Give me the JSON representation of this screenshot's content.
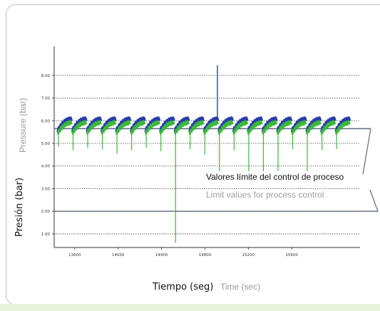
{
  "chart_data": {
    "type": "line",
    "ylabel_es": "Presión (bar)",
    "ylabel_en": "Pressure (bar)",
    "xlabel_es": "Tiempo (seg)",
    "xlabel_en": "Time (sec)",
    "ylim": [
      0.4,
      9.6
    ],
    "xlim": [
      13410,
      16230
    ],
    "y_ticks": [
      1.0,
      2.0,
      3.0,
      4.0,
      5.0,
      6.0,
      7.0,
      8.0
    ],
    "y_tick_labels": [
      "1.00",
      "2.00",
      "3.00",
      "4.00",
      "5.00",
      "6.00",
      "7.00",
      "8.00"
    ],
    "x_ticks": [
      13600,
      14000,
      14400,
      14800,
      15200,
      15600
    ],
    "x_tick_labels": [
      "13600",
      "14000",
      "14400",
      "14800",
      "15200",
      "15600"
    ],
    "grid": true,
    "limit_upper": 5.65,
    "limit_lower": 2.0,
    "limit_label_es": "Valores límite del control de proceso",
    "limit_label_en": "Limit values for process control",
    "cycle_start_x": [
      13445,
      13580,
      13715,
      13850,
      13985,
      14120,
      14255,
      14390,
      14525,
      14660,
      14795,
      14930,
      15065,
      15200,
      15335,
      15470,
      15605,
      15740,
      15875,
      16010
    ],
    "cycle_dip_y": [
      4.85,
      4.7,
      4.8,
      4.75,
      4.55,
      4.7,
      4.8,
      4.65,
      0.6,
      4.75,
      4.5,
      3.75,
      4.7,
      3.65,
      3.65,
      3.6,
      4.75,
      3.65,
      4.7,
      4.75
    ],
    "series": [
      {
        "name": "",
        "color": "#2a3da8",
        "peak": 6.05,
        "trough": 5.55,
        "spike_x": 14915,
        "spike_y": 8.45
      },
      {
        "name": "",
        "color": "#3cb83c",
        "peak": 5.9,
        "trough": 5.45
      }
    ]
  },
  "colors": {
    "limit_line": "#5a6c7e",
    "grid": "#444444",
    "axis": "#333333"
  }
}
